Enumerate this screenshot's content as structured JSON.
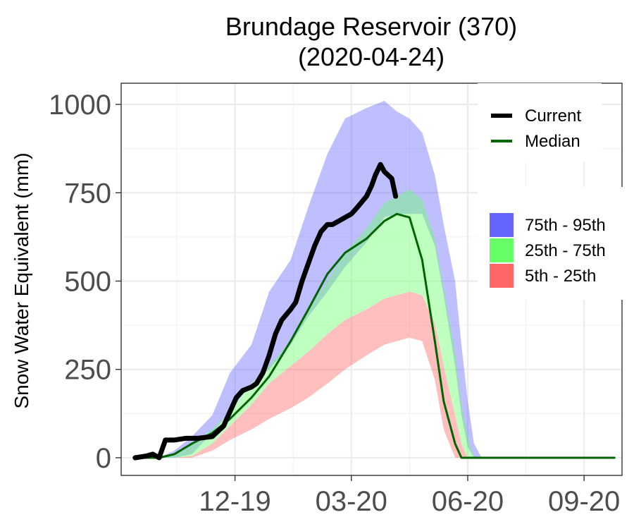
{
  "chart_data": {
    "type": "area",
    "title": "Brundage Reservoir (370)",
    "subtitle": "(2020-04-24)",
    "xlabel": "",
    "ylabel": "Snow Water Equivalent (mm)",
    "xlim": [
      "2019-09-20",
      "2020-10-20"
    ],
    "ylim": [
      -50,
      1060
    ],
    "x_ticks": [
      {
        "date": "2019-12-19",
        "label": "12-19"
      },
      {
        "date": "2020-03-20",
        "label": "03-20"
      },
      {
        "date": "2020-06-20",
        "label": "06-20"
      },
      {
        "date": "2020-09-20",
        "label": "09-20"
      }
    ],
    "y_ticks": [
      0,
      250,
      500,
      750,
      1000
    ],
    "grid": true,
    "legend_placement": "right",
    "colors": {
      "current": "#000000",
      "median": "#006400",
      "band_75_95": "#6666ff",
      "band_25_75": "#66ff66",
      "band_5_25": "#ff6666"
    },
    "bands": [
      {
        "name": "75th - 95th",
        "x": [
          "2019-10-20",
          "2019-11-01",
          "2019-11-15",
          "2019-12-01",
          "2019-12-15",
          "2020-01-01",
          "2020-01-15",
          "2020-02-01",
          "2020-02-15",
          "2020-03-01",
          "2020-03-15",
          "2020-04-01",
          "2020-04-15",
          "2020-04-25",
          "2020-05-05",
          "2020-05-15",
          "2020-05-25",
          "2020-06-01",
          "2020-06-10",
          "2020-06-15",
          "2020-06-20",
          "2020-06-25",
          "2020-07-01"
        ],
        "lower": [
          0,
          0,
          10,
          70,
          130,
          210,
          250,
          320,
          400,
          470,
          540,
          610,
          680,
          690,
          690,
          690,
          600,
          460,
          260,
          120,
          30,
          0,
          0
        ],
        "upper": [
          0,
          20,
          60,
          120,
          240,
          320,
          470,
          560,
          710,
          860,
          960,
          990,
          1010,
          980,
          960,
          920,
          800,
          660,
          500,
          320,
          160,
          40,
          0
        ]
      },
      {
        "name": "25th - 75th",
        "x": [
          "2019-10-20",
          "2019-11-01",
          "2019-11-15",
          "2019-12-01",
          "2019-12-15",
          "2020-01-01",
          "2020-01-15",
          "2020-02-01",
          "2020-02-15",
          "2020-03-01",
          "2020-03-15",
          "2020-04-01",
          "2020-04-15",
          "2020-04-25",
          "2020-05-05",
          "2020-05-15",
          "2020-05-25",
          "2020-06-01",
          "2020-06-10",
          "2020-06-15",
          "2020-06-20",
          "2020-06-25",
          "2020-07-01"
        ],
        "lower": [
          0,
          0,
          5,
          40,
          90,
          150,
          210,
          260,
          300,
          350,
          390,
          420,
          450,
          460,
          470,
          460,
          380,
          260,
          120,
          40,
          0,
          0,
          0
        ],
        "upper": [
          0,
          10,
          40,
          80,
          130,
          210,
          260,
          330,
          420,
          500,
          580,
          650,
          720,
          740,
          760,
          730,
          620,
          480,
          300,
          150,
          60,
          0,
          0
        ]
      },
      {
        "name": "5th - 25th",
        "x": [
          "2019-10-20",
          "2019-11-01",
          "2019-11-15",
          "2019-12-01",
          "2019-12-15",
          "2020-01-01",
          "2020-01-15",
          "2020-02-01",
          "2020-02-15",
          "2020-03-01",
          "2020-03-15",
          "2020-04-01",
          "2020-04-15",
          "2020-04-25",
          "2020-05-05",
          "2020-05-15",
          "2020-05-25",
          "2020-06-01",
          "2020-06-10",
          "2020-06-15",
          "2020-06-20",
          "2020-06-25",
          "2020-07-01"
        ],
        "lower": [
          0,
          0,
          0,
          20,
          50,
          80,
          110,
          140,
          170,
          210,
          250,
          290,
          320,
          330,
          340,
          330,
          220,
          80,
          0,
          0,
          0,
          0,
          0
        ],
        "upper": [
          0,
          0,
          5,
          40,
          90,
          150,
          210,
          260,
          300,
          350,
          390,
          420,
          450,
          460,
          470,
          460,
          380,
          260,
          120,
          40,
          0,
          0,
          0
        ]
      }
    ],
    "series": [
      {
        "name": "Current",
        "x": [
          "2019-10-01",
          "2019-10-10",
          "2019-10-15",
          "2019-10-20",
          "2019-10-25",
          "2019-11-01",
          "2019-11-10",
          "2019-11-20",
          "2019-12-01",
          "2019-12-10",
          "2019-12-15",
          "2019-12-20",
          "2019-12-25",
          "2020-01-01",
          "2020-01-05",
          "2020-01-10",
          "2020-01-15",
          "2020-01-20",
          "2020-01-25",
          "2020-02-01",
          "2020-02-05",
          "2020-02-10",
          "2020-02-15",
          "2020-02-20",
          "2020-02-25",
          "2020-03-01",
          "2020-03-05",
          "2020-03-10",
          "2020-03-15",
          "2020-03-20",
          "2020-03-25",
          "2020-04-01",
          "2020-04-05",
          "2020-04-08",
          "2020-04-12",
          "2020-04-15",
          "2020-04-18",
          "2020-04-21",
          "2020-04-24"
        ],
        "values": [
          0,
          5,
          10,
          0,
          50,
          50,
          55,
          55,
          60,
          90,
          130,
          170,
          190,
          200,
          210,
          240,
          290,
          350,
          390,
          420,
          440,
          500,
          550,
          600,
          640,
          660,
          660,
          670,
          680,
          690,
          710,
          740,
          770,
          800,
          830,
          810,
          800,
          790,
          740
        ]
      },
      {
        "name": "Median",
        "x": [
          "2019-10-01",
          "2019-10-20",
          "2019-11-01",
          "2019-11-15",
          "2019-12-01",
          "2019-12-15",
          "2020-01-01",
          "2020-01-15",
          "2020-02-01",
          "2020-02-15",
          "2020-03-01",
          "2020-03-15",
          "2020-04-01",
          "2020-04-15",
          "2020-04-25",
          "2020-05-05",
          "2020-05-15",
          "2020-05-25",
          "2020-06-01",
          "2020-06-10",
          "2020-06-15",
          "2020-06-20",
          "2020-07-01",
          "2020-08-01",
          "2020-09-01",
          "2020-10-14"
        ],
        "values": [
          0,
          0,
          10,
          40,
          70,
          110,
          170,
          230,
          330,
          420,
          520,
          580,
          620,
          670,
          690,
          680,
          560,
          330,
          160,
          40,
          0,
          0,
          0,
          0,
          0,
          0
        ]
      }
    ]
  }
}
